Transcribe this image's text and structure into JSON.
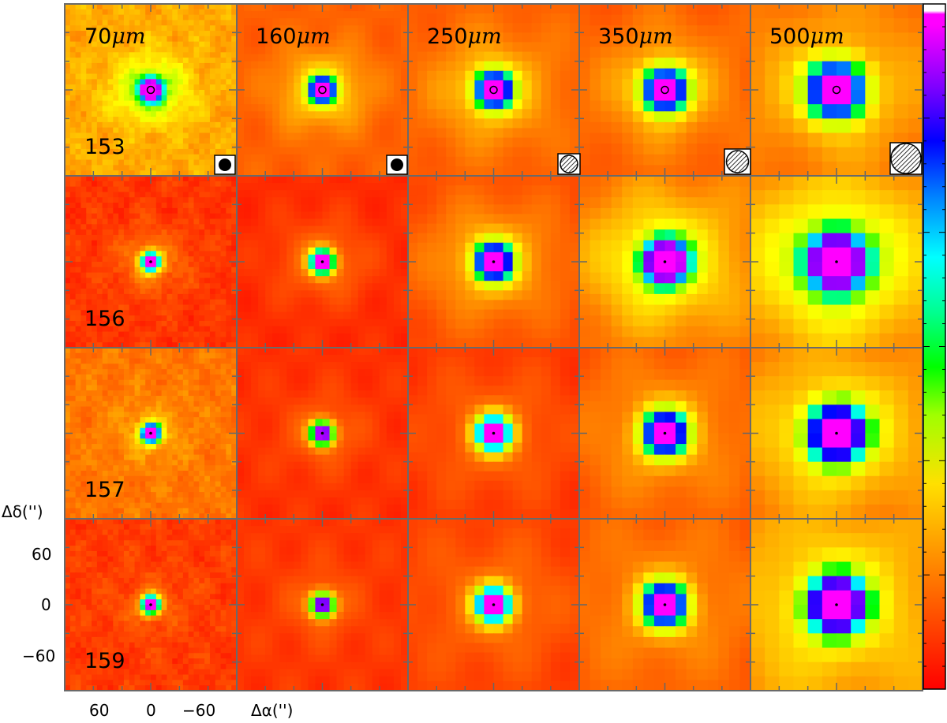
{
  "figure": {
    "wavelengths": [
      {
        "num": "70",
        "unit": "μm"
      },
      {
        "num": "160",
        "unit": "μm"
      },
      {
        "num": "250",
        "unit": "μm"
      },
      {
        "num": "350",
        "unit": "μm"
      },
      {
        "num": "500",
        "unit": "μm"
      }
    ],
    "sources": [
      "153",
      "156",
      "157",
      "159"
    ],
    "y_axis_title": "Δδ('')",
    "x_axis_title": "Δα('')",
    "y_ticks": [
      "60",
      "0",
      "−60"
    ],
    "x_ticks": [
      "60",
      "0",
      "−60"
    ],
    "colorbar": {
      "colors": [
        "#ff0000",
        "#ff4000",
        "#ff8000",
        "#ffc000",
        "#ffff00",
        "#c0ff00",
        "#00ff00",
        "#00ffc0",
        "#00ffff",
        "#0080ff",
        "#0000ff",
        "#8000ff",
        "#ff00ff",
        "#ffffff"
      ]
    }
  }
}
